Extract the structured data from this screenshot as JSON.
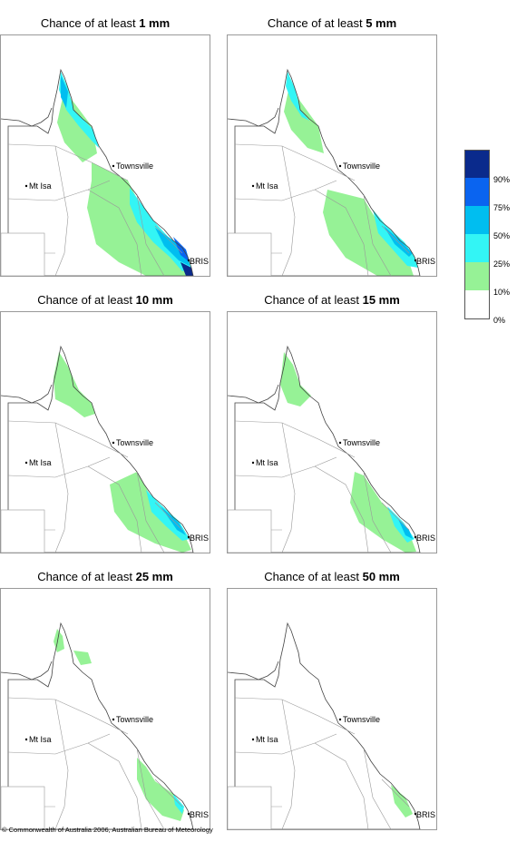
{
  "panels": [
    {
      "prefix": "Chance of at least ",
      "amount": "1 mm",
      "level": 6
    },
    {
      "prefix": "Chance of at least ",
      "amount": "5 mm",
      "level": 5
    },
    {
      "prefix": "Chance of at least ",
      "amount": "10 mm",
      "level": 4
    },
    {
      "prefix": "Chance of at least ",
      "amount": "15 mm",
      "level": 3
    },
    {
      "prefix": "Chance of at least ",
      "amount": "25 mm",
      "level": 2
    },
    {
      "prefix": "Chance of at least ",
      "amount": "50 mm",
      "level": 1
    }
  ],
  "places": {
    "townsville": "Townsville",
    "mt_isa": "Mt Isa",
    "bris": "BRIS"
  },
  "legend": {
    "labels": [
      "90%",
      "75%",
      "50%",
      "25%",
      "10%",
      "0%"
    ],
    "colors": [
      "#0a2a8c",
      "#0a64f0",
      "#00bef0",
      "#33f5f5",
      "#96f296",
      "#ffffff"
    ]
  },
  "colors": {
    "green": "#96f296",
    "cyan": "#33f5f5",
    "lightblue": "#00bef0",
    "blue": "#0a64f0",
    "darkblue": "#0a2a8c"
  },
  "copyright": "© Commonwealth of Australia 2006, Australian Bureau of Meteorology"
}
